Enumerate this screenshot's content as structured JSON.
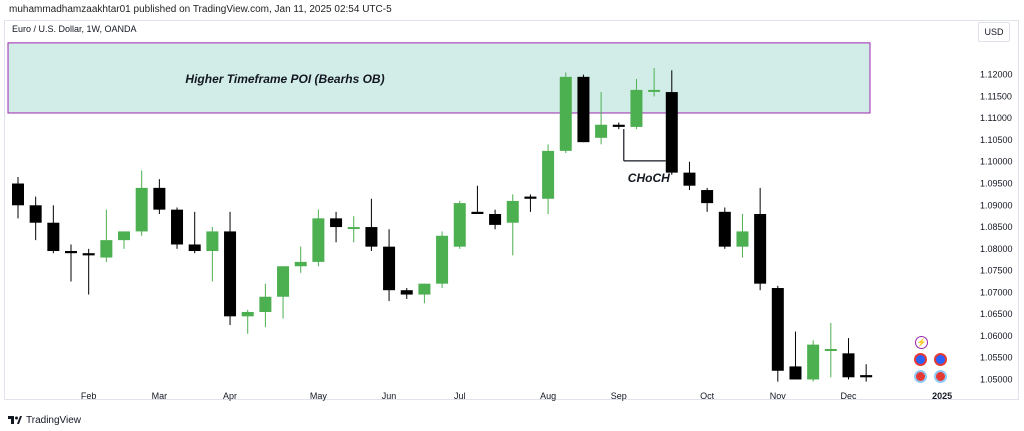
{
  "header": {
    "published_line": "muhammadhamzaakhtar01 published on TradingView.com, Jan 11, 2025 02:54 UTC-5",
    "symbol_line": "Euro / U.S. Dollar, 1W, OANDA",
    "currency_button": "USD"
  },
  "footer": {
    "brand": "TradingView"
  },
  "chart_data": {
    "type": "candlestick",
    "title": "Euro / U.S. Dollar, 1W, OANDA",
    "ylim": [
      1.0485,
      1.1275
    ],
    "y_ticks": [
      "1.12000",
      "1.11500",
      "1.11000",
      "1.10500",
      "1.10000",
      "1.09500",
      "1.09000",
      "1.08500",
      "1.08000",
      "1.07500",
      "1.07000",
      "1.06500",
      "1.06000",
      "1.05500",
      "1.05000"
    ],
    "y_tick_values": [
      1.12,
      1.115,
      1.11,
      1.105,
      1.1,
      1.095,
      1.09,
      1.085,
      1.08,
      1.075,
      1.07,
      1.065,
      1.06,
      1.055,
      1.05
    ],
    "x_labels": [
      "Feb",
      "Mar",
      "Apr",
      "May",
      "Jun",
      "Jul",
      "Aug",
      "Sep",
      "Oct",
      "Nov",
      "Dec",
      "2025"
    ],
    "x_label_index": [
      4,
      8,
      12,
      17,
      21,
      25,
      30,
      34,
      39,
      43,
      47,
      52.3
    ],
    "up_color": "#4caf50",
    "down_color": "#000000",
    "candles": [
      {
        "o": 1.095,
        "h": 1.0965,
        "l": 1.087,
        "c": 1.09
      },
      {
        "o": 1.09,
        "h": 1.092,
        "l": 1.082,
        "c": 1.086
      },
      {
        "o": 1.086,
        "h": 1.09,
        "l": 1.079,
        "c": 1.0795
      },
      {
        "o": 1.0795,
        "h": 1.081,
        "l": 1.0725,
        "c": 1.079
      },
      {
        "o": 1.079,
        "h": 1.08,
        "l": 1.0695,
        "c": 1.0785
      },
      {
        "o": 1.078,
        "h": 1.089,
        "l": 1.077,
        "c": 1.082
      },
      {
        "o": 1.082,
        "h": 1.084,
        "l": 1.08,
        "c": 1.084
      },
      {
        "o": 1.084,
        "h": 1.098,
        "l": 1.083,
        "c": 1.094
      },
      {
        "o": 1.094,
        "h": 1.096,
        "l": 1.088,
        "c": 1.089
      },
      {
        "o": 1.089,
        "h": 1.0895,
        "l": 1.08,
        "c": 1.081
      },
      {
        "o": 1.081,
        "h": 1.0885,
        "l": 1.079,
        "c": 1.0795
      },
      {
        "o": 1.0795,
        "h": 1.085,
        "l": 1.0725,
        "c": 1.084
      },
      {
        "o": 1.084,
        "h": 1.0885,
        "l": 1.0625,
        "c": 1.0645
      },
      {
        "o": 1.0645,
        "h": 1.066,
        "l": 1.0605,
        "c": 1.0655
      },
      {
        "o": 1.0655,
        "h": 1.072,
        "l": 1.062,
        "c": 1.069
      },
      {
        "o": 1.069,
        "h": 1.076,
        "l": 1.064,
        "c": 1.076
      },
      {
        "o": 1.076,
        "h": 1.0805,
        "l": 1.0745,
        "c": 1.077
      },
      {
        "o": 1.077,
        "h": 1.089,
        "l": 1.076,
        "c": 1.087
      },
      {
        "o": 1.087,
        "h": 1.0885,
        "l": 1.0815,
        "c": 1.085
      },
      {
        "o": 1.085,
        "h": 1.0875,
        "l": 1.0815,
        "c": 1.085
      },
      {
        "o": 1.085,
        "h": 1.0915,
        "l": 1.0795,
        "c": 1.0805
      },
      {
        "o": 1.0805,
        "h": 1.0845,
        "l": 1.068,
        "c": 1.0705
      },
      {
        "o": 1.0705,
        "h": 1.071,
        "l": 1.0685,
        "c": 1.0695
      },
      {
        "o": 1.0695,
        "h": 1.072,
        "l": 1.0675,
        "c": 1.072
      },
      {
        "o": 1.072,
        "h": 1.084,
        "l": 1.071,
        "c": 1.083
      },
      {
        "o": 1.0805,
        "h": 1.091,
        "l": 1.08,
        "c": 1.0905
      },
      {
        "o": 1.0885,
        "h": 1.0945,
        "l": 1.088,
        "c": 1.088
      },
      {
        "o": 1.088,
        "h": 1.089,
        "l": 1.0845,
        "c": 1.0855
      },
      {
        "o": 1.086,
        "h": 1.0925,
        "l": 1.0785,
        "c": 1.091
      },
      {
        "o": 1.092,
        "h": 1.0925,
        "l": 1.0885,
        "c": 1.0915
      },
      {
        "o": 1.0915,
        "h": 1.104,
        "l": 1.088,
        "c": 1.1025
      },
      {
        "o": 1.1025,
        "h": 1.1205,
        "l": 1.102,
        "c": 1.1195
      },
      {
        "o": 1.1195,
        "h": 1.12,
        "l": 1.1045,
        "c": 1.1045
      },
      {
        "o": 1.1055,
        "h": 1.116,
        "l": 1.104,
        "c": 1.1085
      },
      {
        "o": 1.1085,
        "h": 1.109,
        "l": 1.1075,
        "c": 1.108
      },
      {
        "o": 1.108,
        "h": 1.119,
        "l": 1.1075,
        "c": 1.1165
      },
      {
        "o": 1.1165,
        "h": 1.1215,
        "l": 1.115,
        "c": 1.1165
      },
      {
        "o": 1.116,
        "h": 1.121,
        "l": 1.097,
        "c": 1.0975
      },
      {
        "o": 1.0975,
        "h": 1.1,
        "l": 1.0935,
        "c": 1.0945
      },
      {
        "o": 1.0935,
        "h": 1.094,
        "l": 1.0885,
        "c": 1.0905
      },
      {
        "o": 1.0885,
        "h": 1.0895,
        "l": 1.08,
        "c": 1.0805
      },
      {
        "o": 1.0805,
        "h": 1.088,
        "l": 1.078,
        "c": 1.084
      },
      {
        "o": 1.088,
        "h": 1.094,
        "l": 1.0705,
        "c": 1.072
      },
      {
        "o": 1.071,
        "h": 1.0715,
        "l": 1.0495,
        "c": 1.052
      },
      {
        "o": 1.053,
        "h": 1.061,
        "l": 1.05,
        "c": 1.05
      },
      {
        "o": 1.05,
        "h": 1.059,
        "l": 1.0495,
        "c": 1.058
      },
      {
        "o": 1.057,
        "h": 1.063,
        "l": 1.0505,
        "c": 1.057
      },
      {
        "o": 1.056,
        "h": 1.0595,
        "l": 1.05,
        "c": 1.0505
      },
      {
        "o": 1.051,
        "h": 1.0535,
        "l": 1.0495,
        "c": 1.0505
      }
    ],
    "annotations": {
      "poi_label": "Higher Timeframe POI (Bearhs OB)",
      "poi_top": 1.1273,
      "poi_bottom": 1.1112,
      "poi_fill": "#d2ede7",
      "poi_border": "#9c27b0",
      "choch_label": "CHoCH",
      "choch_level": 1.1002,
      "choch_from_index": 34,
      "choch_to_index": 37
    }
  }
}
